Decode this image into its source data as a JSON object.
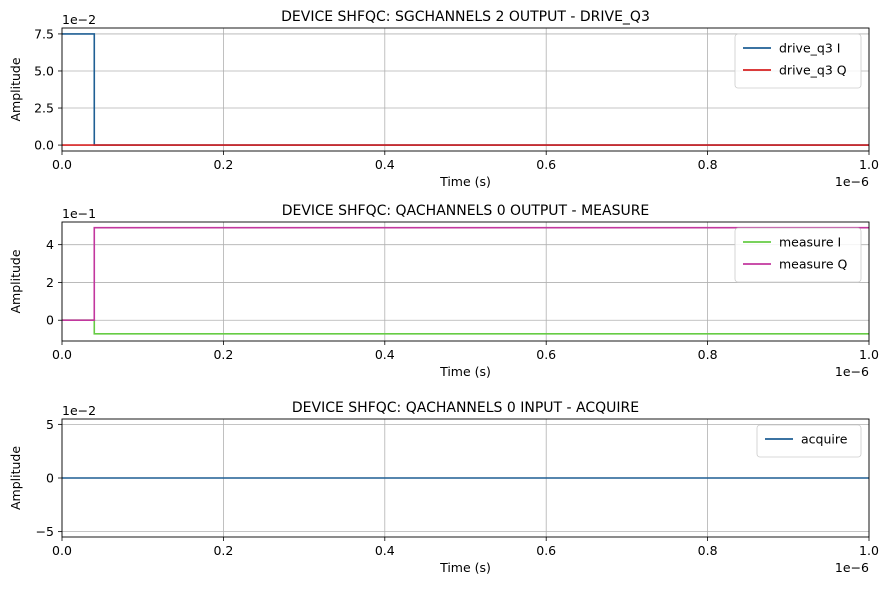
{
  "chart_data": [
    {
      "type": "line",
      "title": "DEVICE SHFQC: SGCHANNELS 2 OUTPUT - DRIVE_Q3",
      "xlabel": "Time (s)",
      "ylabel": "Amplitude",
      "xlim": [
        0,
        1e-06
      ],
      "ylim": [
        -0.004,
        0.079
      ],
      "x_offset_label": "1e−6",
      "y_offset_label": "1e−2",
      "x_ticks": [
        0,
        0.2,
        0.4,
        0.6,
        0.8,
        1.0
      ],
      "x_tick_labels": [
        "0.0",
        "0.2",
        "0.4",
        "0.6",
        "0.8",
        "1.0"
      ],
      "y_ticks": [
        0,
        0.025,
        0.05,
        0.075
      ],
      "y_tick_labels": [
        "0.0",
        "2.5",
        "5.0",
        "7.5"
      ],
      "grid": true,
      "legend": "top-right",
      "series": [
        {
          "name": "drive_q3 I",
          "color": "#1f5f94",
          "points": [
            [
              0,
              0.075
            ],
            [
              4e-08,
              0.075
            ],
            [
              4e-08,
              0
            ],
            [
              1e-06,
              0
            ]
          ]
        },
        {
          "name": "drive_q3 Q",
          "color": "#d62020",
          "points": [
            [
              0,
              0
            ],
            [
              1e-06,
              0
            ]
          ]
        }
      ]
    },
    {
      "type": "line",
      "title": "DEVICE SHFQC: QACHANNELS 0 OUTPUT - MEASURE",
      "xlabel": "Time (s)",
      "ylabel": "Amplitude",
      "xlim": [
        0,
        1e-06
      ],
      "ylim": [
        -1.1,
        5.2
      ],
      "x_offset_label": "1e−6",
      "y_offset_label": "1e−1",
      "x_ticks": [
        0,
        0.2,
        0.4,
        0.6,
        0.8,
        1.0
      ],
      "x_tick_labels": [
        "0.0",
        "0.2",
        "0.4",
        "0.6",
        "0.8",
        "1.0"
      ],
      "y_ticks": [
        0,
        2,
        4
      ],
      "y_tick_labels": [
        "0",
        "2",
        "4"
      ],
      "grid": true,
      "legend": "top-right",
      "series": [
        {
          "name": "measure I",
          "color": "#66cc44",
          "points": [
            [
              0,
              0
            ],
            [
              4e-08,
              0
            ],
            [
              4e-08,
              -0.72
            ],
            [
              1e-06,
              -0.72
            ]
          ]
        },
        {
          "name": "measure Q",
          "color": "#c2379e",
          "points": [
            [
              0,
              0
            ],
            [
              4e-08,
              0
            ],
            [
              4e-08,
              4.9
            ],
            [
              1e-06,
              4.9
            ]
          ]
        }
      ]
    },
    {
      "type": "line",
      "title": "DEVICE SHFQC: QACHANNELS 0 INPUT - ACQUIRE",
      "xlabel": "Time (s)",
      "ylabel": "Amplitude",
      "xlim": [
        0,
        1e-06
      ],
      "ylim": [
        -0.055,
        0.055
      ],
      "x_offset_label": "1e−6",
      "y_offset_label": "1e−2",
      "x_ticks": [
        0,
        0.2,
        0.4,
        0.6,
        0.8,
        1.0
      ],
      "x_tick_labels": [
        "0.0",
        "0.2",
        "0.4",
        "0.6",
        "0.8",
        "1.0"
      ],
      "y_ticks": [
        -0.05,
        0,
        0.05
      ],
      "y_tick_labels": [
        "−5",
        "0",
        "5"
      ],
      "grid": true,
      "legend": "top-right",
      "series": [
        {
          "name": "acquire",
          "color": "#1f5f94",
          "points": [
            [
              0,
              0
            ],
            [
              1e-06,
              0
            ]
          ]
        }
      ]
    }
  ]
}
